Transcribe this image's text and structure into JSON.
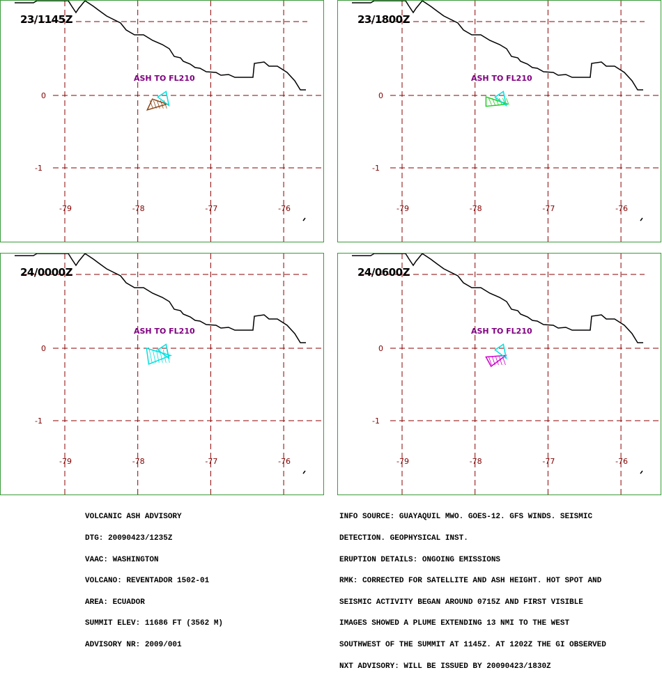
{
  "panels": [
    {
      "time": "23/1145Z",
      "label": "ASH TO FL210",
      "ash_color": "#8b4513",
      "plume": [
        [
          -77.8,
          -0.05
        ],
        [
          -77.6,
          -0.12
        ],
        [
          -77.87,
          -0.2
        ]
      ]
    },
    {
      "time": "23/1800Z",
      "label": "ASH TO FL210",
      "ash_color": "#22cc22",
      "plume": [
        [
          -77.85,
          -0.02
        ],
        [
          -77.55,
          -0.12
        ],
        [
          -77.85,
          -0.15
        ]
      ]
    },
    {
      "time": "24/0000Z",
      "label": "ASH TO FL210",
      "ash_color": "#00e0e0",
      "plume": [
        [
          -77.88,
          0.0
        ],
        [
          -77.55,
          -0.1
        ],
        [
          -77.85,
          -0.22
        ]
      ]
    },
    {
      "time": "24/0600Z",
      "label": "ASH TO FL210",
      "ash_color": "#cc00cc",
      "plume": [
        [
          -77.85,
          -0.12
        ],
        [
          -77.58,
          -0.1
        ],
        [
          -77.78,
          -0.25
        ]
      ]
    }
  ],
  "axes": {
    "lon_ticks": [
      "-79",
      "-78",
      "-77",
      "-76"
    ],
    "lat_ticks": [
      "0",
      "-1"
    ]
  },
  "advisory_left": [
    "VOLCANIC ASH ADVISORY",
    "DTG: 20090423/1235Z",
    "VAAC: WASHINGTON",
    "VOLCANO: REVENTADOR 1502-01",
    "AREA: ECUADOR",
    "SUMMIT ELEV: 11686 FT (3562 M)",
    "ADVISORY NR: 2009/001"
  ],
  "advisory_right": [
    "INFO SOURCE: GUAYAQUIL MWO. GOES-12. GFS WINDS. SEISMIC",
    "DETECTION. GEOPHYSICAL INST.",
    "ERUPTION DETAILS: ONGOING EMISSIONS",
    "RMK: CORRECTED FOR SATELLITE AND ASH HEIGHT. HOT SPOT AND",
    "SEISMIC ACTIVITY BEGAN AROUND 0715Z AND FIRST VISIBLE",
    "IMAGES SHOWED A PLUME EXTENDING 13 NMI TO THE WEST",
    "SOUTHWEST OF THE SUMMIT AT 1145Z. AT 1202Z THE GI OBSERVED",
    "NXT ADVISORY: WILL BE ISSUED BY 20090423/1830Z"
  ],
  "colors": {
    "grid": "#8b0000",
    "border": "#3a9a3a",
    "label": "#800080",
    "current_ash": "#00e0e0"
  }
}
